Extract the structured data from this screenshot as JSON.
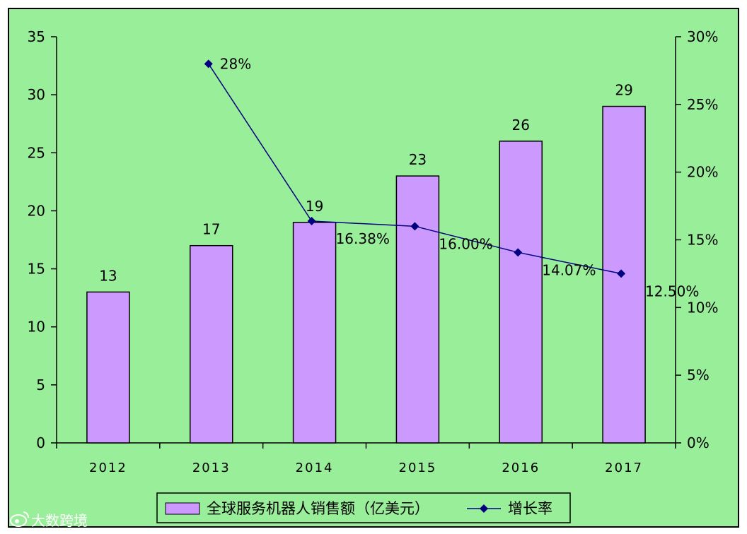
{
  "chart_data": {
    "type": "bar",
    "categories": [
      "2012",
      "2013",
      "2014",
      "2015",
      "2016",
      "2017"
    ],
    "series": [
      {
        "name": "全球服务机器人销售额（亿美元）",
        "kind": "bar",
        "axis": "left",
        "values": [
          13,
          17,
          19,
          23,
          26,
          29
        ],
        "labels": [
          "13",
          "17",
          "19",
          "23",
          "26",
          "29"
        ],
        "color": "#cc99ff"
      },
      {
        "name": "增长率",
        "kind": "line",
        "axis": "right",
        "values": [
          null,
          28,
          16.38,
          16.0,
          14.07,
          12.5
        ],
        "labels": [
          "",
          "28%",
          "16.38%",
          "16.00%",
          "14.07%",
          "12.50%"
        ],
        "color": "#000080"
      }
    ],
    "ylim": [
      0,
      35
    ],
    "y_ticks": [
      "0",
      "5",
      "10",
      "15",
      "20",
      "25",
      "30",
      "35"
    ],
    "y2lim": [
      0,
      30
    ],
    "y2_ticks": [
      "0%",
      "5%",
      "10%",
      "15%",
      "20%",
      "25%",
      "30%"
    ],
    "grid": false,
    "legend": "bottom",
    "background": "#99ee99"
  },
  "watermark": {
    "icon": "weibo-icon",
    "text": "大数跨境"
  }
}
